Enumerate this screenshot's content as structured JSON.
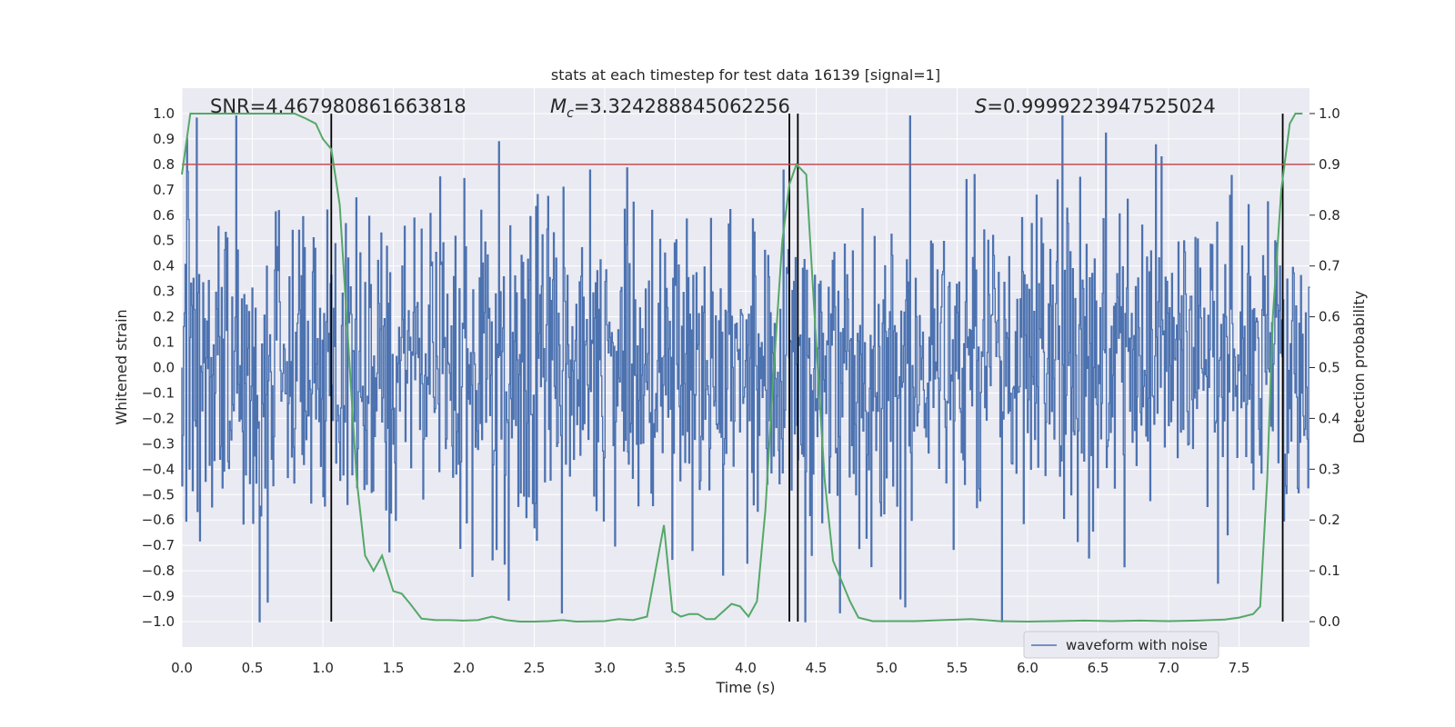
{
  "chart_data": {
    "type": "line",
    "title": "stats at each timestep for test data 16139 [signal=1]",
    "xlabel": "Time (s)",
    "ylabel_left": "Whitened strain",
    "ylabel_right": "Detection probability",
    "xlim": [
      0.0,
      8.0
    ],
    "ylim_left": [
      -1.1,
      1.1
    ],
    "ylim_right": [
      -0.05,
      1.05
    ],
    "x_ticks": [
      0.0,
      0.5,
      1.0,
      1.5,
      2.0,
      2.5,
      3.0,
      3.5,
      4.0,
      4.5,
      5.0,
      5.5,
      6.0,
      6.5,
      7.0,
      7.5
    ],
    "y_ticks_left": [
      -1.0,
      -0.9,
      -0.8,
      -0.7,
      -0.6,
      -0.5,
      -0.4,
      -0.3,
      -0.2,
      -0.1,
      0.0,
      0.1,
      0.2,
      0.3,
      0.4,
      0.5,
      0.6,
      0.7,
      0.8,
      0.9,
      1.0
    ],
    "y_ticks_right": [
      0.0,
      0.1,
      0.2,
      0.3,
      0.4,
      0.5,
      0.6,
      0.7,
      0.8,
      0.9,
      1.0
    ],
    "grid": true,
    "legend": {
      "entries": [
        "waveform with noise"
      ],
      "placement": "bottom-right"
    },
    "annotations": {
      "snr": "SNR=4.467980861663818",
      "mc_symbol": "M",
      "mc_sub": "c",
      "mc_value": "=3.324288845062256",
      "s_symbol": "S",
      "s_value": "=0.9999223947525024"
    },
    "threshold": {
      "value": 0.9,
      "axis": "right"
    },
    "vlines": [
      1.06,
      4.31,
      4.37,
      7.81
    ],
    "series": [
      {
        "name": "waveform with noise",
        "axis": "left",
        "kind": "noise",
        "approx_abs_mean": 0.38,
        "max_peak": 0.99,
        "min_peak": -1.0,
        "count": 1400
      },
      {
        "axis": "right",
        "x": [
          0.0,
          0.06,
          0.2,
          0.4,
          0.6,
          0.8,
          0.88,
          0.95,
          1.0,
          1.06,
          1.12,
          1.18,
          1.24,
          1.3,
          1.36,
          1.42,
          1.5,
          1.56,
          1.62,
          1.7,
          1.8,
          1.9,
          2.0,
          2.1,
          2.2,
          2.3,
          2.4,
          2.5,
          2.6,
          2.7,
          2.8,
          3.0,
          3.1,
          3.2,
          3.3,
          3.36,
          3.42,
          3.48,
          3.54,
          3.6,
          3.66,
          3.72,
          3.78,
          3.84,
          3.9,
          3.96,
          4.02,
          4.08,
          4.14,
          4.2,
          4.26,
          4.31,
          4.36,
          4.43,
          4.5,
          4.56,
          4.62,
          4.68,
          4.74,
          4.8,
          4.9,
          5.0,
          5.2,
          5.4,
          5.6,
          5.8,
          6.0,
          6.2,
          6.4,
          6.6,
          6.8,
          7.0,
          7.2,
          7.4,
          7.5,
          7.6,
          7.65,
          7.7,
          7.74,
          7.8,
          7.86,
          7.9,
          7.95
        ],
        "values": [
          0.88,
          1.0,
          1.0,
          1.0,
          1.0,
          1.0,
          0.99,
          0.98,
          0.95,
          0.93,
          0.82,
          0.55,
          0.28,
          0.13,
          0.1,
          0.13,
          0.06,
          0.055,
          0.035,
          0.006,
          0.003,
          0.003,
          0.002,
          0.003,
          0.01,
          0.003,
          0.0,
          0.0,
          0.001,
          0.003,
          0.0,
          0.001,
          0.005,
          0.003,
          0.01,
          0.1,
          0.19,
          0.02,
          0.01,
          0.015,
          0.015,
          0.005,
          0.005,
          0.02,
          0.035,
          0.03,
          0.01,
          0.04,
          0.22,
          0.5,
          0.75,
          0.86,
          0.9,
          0.88,
          0.55,
          0.28,
          0.12,
          0.08,
          0.04,
          0.008,
          0.001,
          0.001,
          0.001,
          0.003,
          0.005,
          0.001,
          0.0,
          0.001,
          0.002,
          0.001,
          0.002,
          0.001,
          0.002,
          0.004,
          0.008,
          0.015,
          0.03,
          0.28,
          0.6,
          0.85,
          0.98,
          1.0,
          1.0
        ]
      }
    ],
    "colors": {
      "background": "#eaeaf2",
      "grid": "#ffffff",
      "waveform": "#4c72b0",
      "probability": "#55a868",
      "threshold": "#c44e52",
      "vline": "#000000"
    }
  }
}
